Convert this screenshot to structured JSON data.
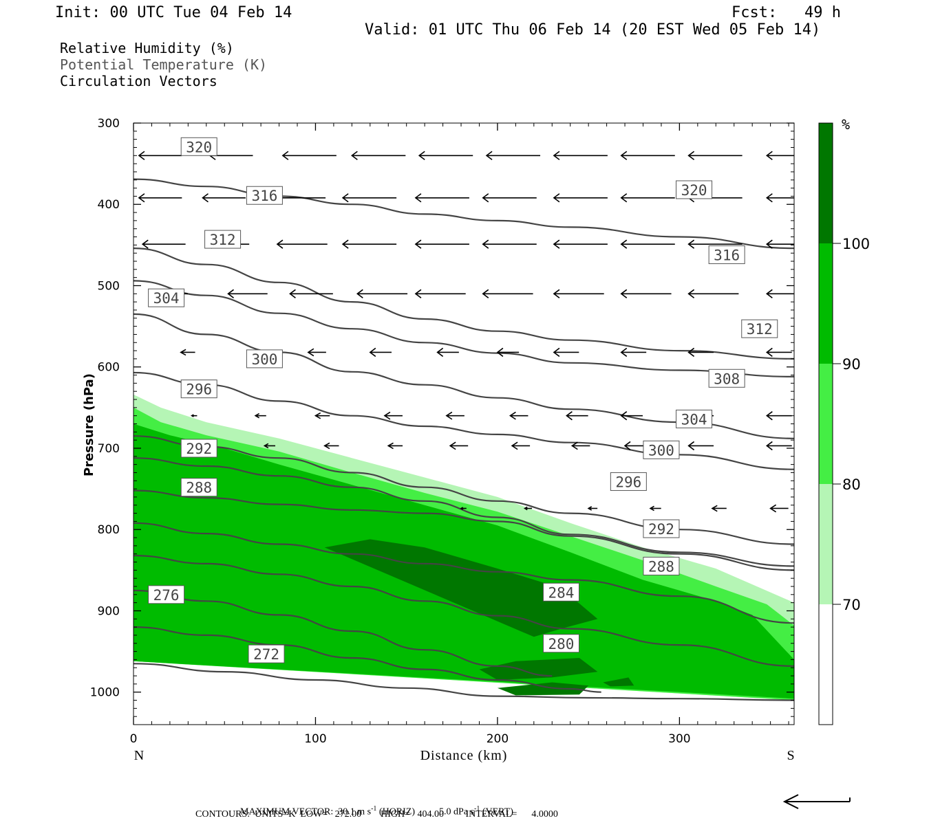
{
  "header": {
    "init": "Init: 00 UTC Tue 04 Feb 14",
    "fcst": "Fcst:   49 h",
    "valid": "Valid: 01 UTC Thu 06 Feb 14 (20 EST Wed 05 Feb 14)"
  },
  "legend": {
    "rh": "Relative Humidity (%)",
    "theta": "Potential Temperature (K)",
    "vectors": "Circulation Vectors"
  },
  "colors": {
    "rh70": "#b5f5b5",
    "rh80": "#44ee44",
    "rh90": "#00bb00",
    "rh100": "#007700",
    "contour": "#444444",
    "label_border": "#555555"
  },
  "footer": {
    "max_vector_label": "MAXIMUM VECTOR:",
    "horiz_value": "30.1 m s",
    "horiz_sup": "-1",
    "horiz_tag": "(HORIZ)",
    "vert_value": "5.0 dPa s",
    "vert_sup": "-1",
    "vert_tag": "(VERT)",
    "contours": "CONTOURS:  UNITS=K  LOW=   272.00        HIGH=   404.00         INTERVAL=      4.0000"
  },
  "chart_data": {
    "type": "cross-section",
    "xlabel": "Distance (km)",
    "ylabel": "Pressure (hPa)",
    "xlim": [
      0,
      363
    ],
    "ylim": [
      300,
      1040
    ],
    "x_ticks": [
      0,
      100,
      200,
      300
    ],
    "y_ticks": [
      300,
      400,
      500,
      600,
      700,
      800,
      900,
      1000
    ],
    "x_end_labels": [
      "N",
      "S"
    ],
    "colorbar": {
      "unit": "%",
      "levels": [
        70,
        80,
        90,
        100
      ],
      "colors": [
        "#ffffff",
        "#b5f5b5",
        "#44ee44",
        "#00bb00",
        "#007700"
      ]
    },
    "theta_contours": [
      {
        "value": 272,
        "labels": [
          [
            73,
            953
          ]
        ],
        "points": [
          [
            0,
            965
          ],
          [
            50,
            975
          ],
          [
            100,
            985
          ],
          [
            150,
            995
          ],
          [
            200,
            1005
          ],
          [
            250,
            1007
          ],
          [
            300,
            1008
          ],
          [
            363,
            1010
          ]
        ]
      },
      {
        "value": 276,
        "labels": [
          [
            18,
            880
          ]
        ],
        "points": [
          [
            0,
            920
          ],
          [
            40,
            930
          ],
          [
            80,
            942
          ],
          [
            120,
            958
          ],
          [
            160,
            972
          ],
          [
            200,
            985
          ],
          [
            240,
            996
          ],
          [
            257,
            1000
          ]
        ]
      },
      {
        "value": 280,
        "labels": [
          [
            235,
            940
          ]
        ],
        "points": [
          [
            0,
            875
          ],
          [
            40,
            888
          ],
          [
            80,
            905
          ],
          [
            120,
            925
          ],
          [
            160,
            948
          ],
          [
            200,
            968
          ],
          [
            230,
            980
          ]
        ]
      },
      {
        "value": 284,
        "labels": [
          [
            235,
            877
          ]
        ],
        "points": [
          [
            0,
            832
          ],
          [
            40,
            842
          ],
          [
            80,
            855
          ],
          [
            120,
            870
          ],
          [
            160,
            888
          ],
          [
            200,
            906
          ],
          [
            240,
            922
          ],
          [
            300,
            942
          ],
          [
            363,
            968
          ]
        ]
      },
      {
        "value": 288,
        "labels": [
          [
            36,
            748
          ],
          [
            290,
            845
          ]
        ],
        "points": [
          [
            0,
            792
          ],
          [
            40,
            805
          ],
          [
            80,
            818
          ],
          [
            120,
            830
          ],
          [
            160,
            842
          ],
          [
            200,
            852
          ],
          [
            240,
            862
          ],
          [
            300,
            882
          ],
          [
            363,
            915
          ]
        ]
      },
      {
        "value": 292,
        "labels": [
          [
            36,
            700
          ],
          [
            290,
            799
          ]
        ],
        "points": [
          [
            0,
            752
          ],
          [
            40,
            761
          ],
          [
            80,
            769
          ],
          [
            120,
            776
          ],
          [
            160,
            780
          ],
          [
            200,
            790
          ],
          [
            240,
            808
          ],
          [
            300,
            830
          ],
          [
            363,
            850
          ]
        ]
      },
      {
        "value": 296,
        "labels": [
          [
            36,
            627
          ],
          [
            272,
            741
          ]
        ],
        "points": [
          [
            0,
            712
          ],
          [
            40,
            722
          ],
          [
            80,
            734
          ],
          [
            120,
            748
          ],
          [
            160,
            765
          ],
          [
            200,
            785
          ],
          [
            240,
            806
          ],
          [
            300,
            828
          ],
          [
            363,
            845
          ]
        ]
      },
      {
        "value": 300,
        "labels": [
          [
            72,
            590
          ],
          [
            290,
            702
          ]
        ],
        "points": [
          [
            0,
            685
          ],
          [
            40,
            698
          ],
          [
            80,
            712
          ],
          [
            120,
            730
          ],
          [
            160,
            748
          ],
          [
            200,
            765
          ],
          [
            240,
            780
          ],
          [
            300,
            800
          ],
          [
            363,
            818
          ]
        ]
      },
      {
        "value": 304,
        "labels": [
          [
            18,
            515
          ],
          [
            308,
            664
          ]
        ],
        "points": [
          [
            0,
            607
          ],
          [
            40,
            622
          ],
          [
            80,
            642
          ],
          [
            120,
            660
          ],
          [
            160,
            673
          ],
          [
            200,
            683
          ],
          [
            240,
            693
          ],
          [
            300,
            708
          ],
          [
            363,
            726
          ]
        ]
      },
      {
        "value": 308,
        "labels": [
          [
            326,
            614
          ]
        ],
        "points": [
          [
            0,
            535
          ],
          [
            40,
            560
          ],
          [
            80,
            582
          ],
          [
            120,
            606
          ],
          [
            160,
            622
          ],
          [
            200,
            638
          ],
          [
            240,
            652
          ],
          [
            300,
            668
          ],
          [
            363,
            688
          ]
        ]
      },
      {
        "value": 312,
        "labels": [
          [
            49,
            443
          ],
          [
            344,
            553
          ]
        ],
        "points": [
          [
            0,
            494
          ],
          [
            40,
            512
          ],
          [
            80,
            534
          ],
          [
            120,
            553
          ],
          [
            160,
            570
          ],
          [
            200,
            583
          ],
          [
            240,
            595
          ],
          [
            300,
            604
          ],
          [
            363,
            612
          ]
        ]
      },
      {
        "value": 316,
        "labels": [
          [
            72,
            389
          ],
          [
            326,
            462
          ]
        ],
        "points": [
          [
            0,
            454
          ],
          [
            40,
            474
          ],
          [
            80,
            496
          ],
          [
            120,
            520
          ],
          [
            160,
            541
          ],
          [
            200,
            556
          ],
          [
            240,
            567
          ],
          [
            300,
            580
          ],
          [
            363,
            590
          ]
        ]
      },
      {
        "value": 320,
        "labels": [
          [
            36,
            329
          ],
          [
            308,
            382
          ]
        ],
        "points": [
          [
            0,
            369
          ],
          [
            40,
            378
          ],
          [
            80,
            390
          ],
          [
            120,
            400
          ],
          [
            160,
            412
          ],
          [
            200,
            420
          ],
          [
            240,
            428
          ],
          [
            300,
            440
          ],
          [
            363,
            454
          ]
        ]
      }
    ],
    "rh_regions": [
      {
        "level": 70,
        "points": [
          [
            0,
            634
          ],
          [
            15,
            650
          ],
          [
            40,
            668
          ],
          [
            80,
            688
          ],
          [
            120,
            712
          ],
          [
            160,
            736
          ],
          [
            200,
            760
          ],
          [
            240,
            792
          ],
          [
            280,
            822
          ],
          [
            320,
            848
          ],
          [
            363,
            890
          ],
          [
            363,
            1010
          ],
          [
            0,
            962
          ]
        ]
      },
      {
        "level": 80,
        "points": [
          [
            0,
            650
          ],
          [
            15,
            668
          ],
          [
            40,
            684
          ],
          [
            80,
            704
          ],
          [
            120,
            730
          ],
          [
            160,
            755
          ],
          [
            200,
            778
          ],
          [
            240,
            808
          ],
          [
            280,
            838
          ],
          [
            320,
            870
          ],
          [
            348,
            892
          ],
          [
            363,
            918
          ],
          [
            363,
            1010
          ],
          [
            0,
            962
          ]
        ]
      },
      {
        "level": 90,
        "points": [
          [
            0,
            670
          ],
          [
            20,
            684
          ],
          [
            50,
            700
          ],
          [
            80,
            720
          ],
          [
            120,
            745
          ],
          [
            160,
            770
          ],
          [
            200,
            795
          ],
          [
            240,
            828
          ],
          [
            280,
            862
          ],
          [
            320,
            888
          ],
          [
            340,
            905
          ],
          [
            363,
            960
          ],
          [
            363,
            1008
          ],
          [
            0,
            962
          ]
        ]
      },
      {
        "level": 100,
        "points": [
          [
            105,
            822
          ],
          [
            130,
            812
          ],
          [
            160,
            822
          ],
          [
            200,
            848
          ],
          [
            235,
            872
          ],
          [
            255,
            910
          ],
          [
            235,
            922
          ],
          [
            220,
            932
          ]
        ]
      },
      {
        "level": 100,
        "points": [
          [
            190,
            972
          ],
          [
            210,
            962
          ],
          [
            245,
            958
          ],
          [
            255,
            975
          ],
          [
            230,
            982
          ],
          [
            200,
            985
          ]
        ]
      },
      {
        "level": 100,
        "points": [
          [
            200,
            995
          ],
          [
            230,
            988
          ],
          [
            250,
            992
          ],
          [
            245,
            1003
          ],
          [
            210,
            1004
          ]
        ]
      },
      {
        "level": 100,
        "points": [
          [
            258,
            988
          ],
          [
            272,
            982
          ],
          [
            275,
            992
          ],
          [
            262,
            993
          ]
        ]
      }
    ],
    "vector_rows": [
      {
        "p": 340,
        "dx": [
          [
            3,
            24
          ],
          [
            42,
            24
          ],
          [
            82,
            30
          ],
          [
            120,
            30
          ],
          [
            157,
            30
          ],
          [
            194,
            30
          ],
          [
            231,
            30
          ],
          [
            268,
            30
          ],
          [
            305,
            30
          ],
          [
            348,
            30
          ]
        ]
      },
      {
        "p": 392,
        "dx": [
          [
            3,
            24
          ],
          [
            38,
            24
          ],
          [
            78,
            28
          ],
          [
            115,
            30
          ],
          [
            155,
            30
          ],
          [
            192,
            30
          ],
          [
            231,
            30
          ],
          [
            268,
            30
          ],
          [
            305,
            30
          ],
          [
            348,
            30
          ]
        ]
      },
      {
        "p": 449,
        "dx": [
          [
            5,
            24
          ],
          [
            40,
            24
          ],
          [
            79,
            28
          ],
          [
            115,
            30
          ],
          [
            155,
            30
          ],
          [
            192,
            30
          ],
          [
            231,
            30
          ],
          [
            268,
            30
          ],
          [
            305,
            30
          ],
          [
            348,
            30
          ]
        ]
      },
      {
        "p": 510,
        "dx": [
          [
            18,
            12
          ],
          [
            52,
            22
          ],
          [
            86,
            24
          ],
          [
            123,
            28
          ],
          [
            155,
            28
          ],
          [
            192,
            28
          ],
          [
            231,
            28
          ],
          [
            268,
            28
          ],
          [
            305,
            28
          ],
          [
            348,
            28
          ]
        ]
      },
      {
        "p": 582,
        "dx": [
          [
            26,
            8
          ],
          [
            96,
            10
          ],
          [
            130,
            12
          ],
          [
            167,
            12
          ],
          [
            200,
            12
          ],
          [
            231,
            14
          ],
          [
            268,
            14
          ],
          [
            305,
            14
          ],
          [
            348,
            14
          ]
        ]
      },
      {
        "p": 660,
        "dx": [
          [
            32,
            3
          ],
          [
            67,
            6
          ],
          [
            100,
            8
          ],
          [
            138,
            10
          ],
          [
            172,
            10
          ],
          [
            207,
            10
          ],
          [
            238,
            12
          ],
          [
            268,
            12
          ],
          [
            305,
            14
          ],
          [
            348,
            14
          ]
        ]
      },
      {
        "p": 697,
        "dx": [
          [
            37,
            5
          ],
          [
            72,
            6
          ],
          [
            105,
            8
          ],
          [
            140,
            8
          ],
          [
            174,
            10
          ],
          [
            208,
            10
          ],
          [
            241,
            10
          ],
          [
            270,
            12
          ],
          [
            305,
            14
          ],
          [
            348,
            14
          ]
        ]
      },
      {
        "p": 774,
        "dx": [
          [
            180,
            3
          ],
          [
            215,
            4
          ],
          [
            250,
            5
          ],
          [
            284,
            6
          ],
          [
            318,
            8
          ],
          [
            350,
            10
          ]
        ]
      }
    ],
    "max_vector_horiz": 30.1,
    "max_vector_vert": 5.0
  }
}
